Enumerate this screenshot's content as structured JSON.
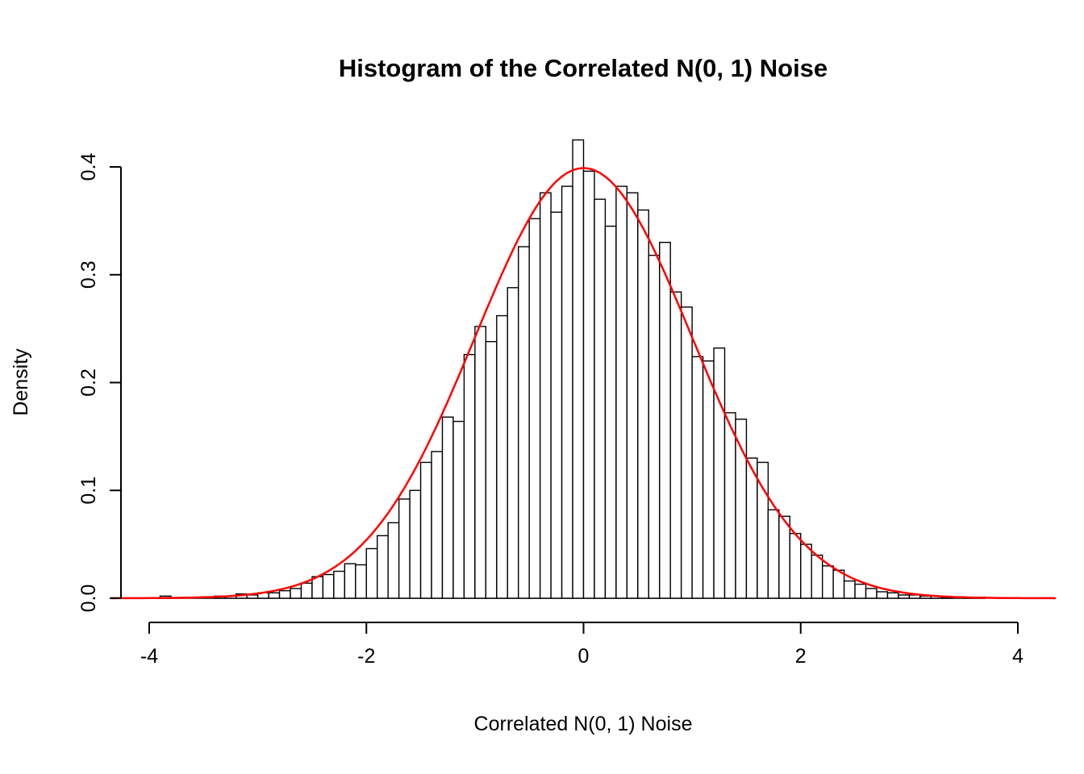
{
  "chart_data": {
    "type": "bar",
    "subtype": "histogram",
    "title": "Histogram of the Correlated N(0, 1) Noise",
    "xlabel": "Correlated N(0, 1) Noise",
    "ylabel": "Density",
    "xlim": [
      -4,
      4
    ],
    "ylim": [
      0,
      0.425
    ],
    "x_ticks": [
      -4,
      -2,
      0,
      2,
      4
    ],
    "x_tick_labels": [
      "-4",
      "-2",
      "0",
      "2",
      "4"
    ],
    "y_ticks": [
      0.0,
      0.1,
      0.2,
      0.3,
      0.4
    ],
    "y_tick_labels": [
      "0.0",
      "0.1",
      "0.2",
      "0.3",
      "0.4"
    ],
    "grid": "off",
    "legend": "none",
    "bin_start": -3.9,
    "bin_width": 0.1,
    "densities": [
      0.002,
      0,
      0,
      0,
      0,
      0.002,
      0.002,
      0.004,
      0.003,
      0.005,
      0.005,
      0.007,
      0.009,
      0.014,
      0.02,
      0.022,
      0.025,
      0.032,
      0.031,
      0.046,
      0.058,
      0.07,
      0.092,
      0.1,
      0.126,
      0.136,
      0.168,
      0.164,
      0.226,
      0.252,
      0.238,
      0.262,
      0.288,
      0.326,
      0.352,
      0.376,
      0.358,
      0.382,
      0.425,
      0.396,
      0.37,
      0.345,
      0.382,
      0.376,
      0.36,
      0.318,
      0.33,
      0.284,
      0.27,
      0.224,
      0.22,
      0.232,
      0.172,
      0.166,
      0.13,
      0.126,
      0.082,
      0.076,
      0.06,
      0.05,
      0.04,
      0.03,
      0.026,
      0.016,
      0.013,
      0.009,
      0.006,
      0.005,
      0.003,
      0.003,
      0.002,
      0.002,
      0.001,
      0,
      0.001,
      0.001
    ],
    "overlay_curve": {
      "name": "standard-normal-density",
      "distribution": "N(0, 1)",
      "mean": 0,
      "sd": 1,
      "color": "#FF0000",
      "peak": 0.3989
    },
    "bar_fill": "#FFFFFF",
    "bar_stroke": "#000000",
    "axis_color": "#000000",
    "background": "#FFFFFF"
  }
}
